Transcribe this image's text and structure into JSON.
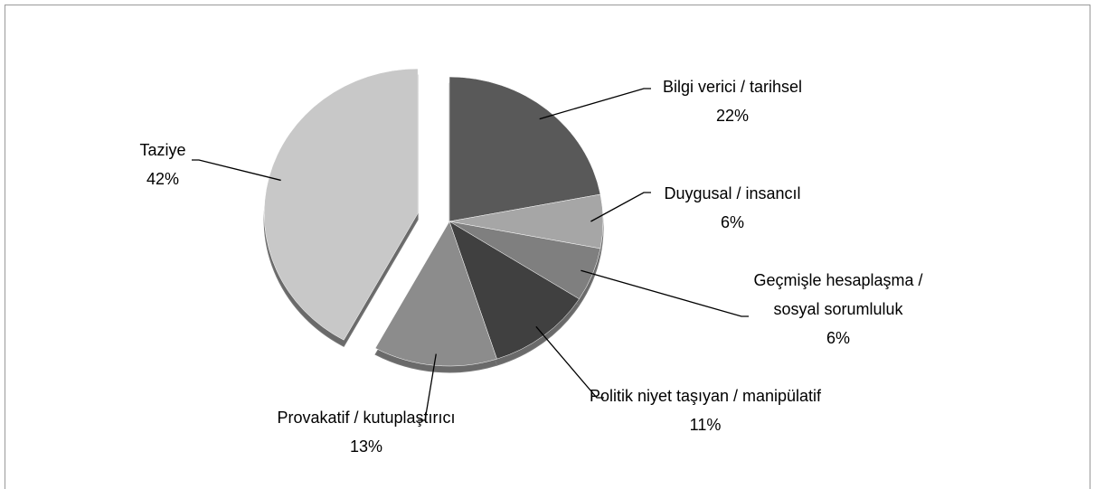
{
  "chart_data": {
    "type": "pie",
    "categories": [
      "Bilgi verici / tarihsel",
      "Duygusal / insancıl",
      "Geçmişle hesaplaşma / sosyal sorumluluk",
      "Politik niyet taşıyan / manipülatif",
      "Provakatif / kutuplaştırıcı",
      "Taziye"
    ],
    "values": [
      22,
      6,
      6,
      11,
      13,
      42
    ],
    "value_labels": [
      "22%",
      "6%",
      "6%",
      "11%",
      "13%",
      "42%"
    ],
    "colors": [
      "#595959",
      "#a6a6a6",
      "#7f7f7f",
      "#404040",
      "#8c8c8c",
      "#c8c8c8"
    ]
  }
}
